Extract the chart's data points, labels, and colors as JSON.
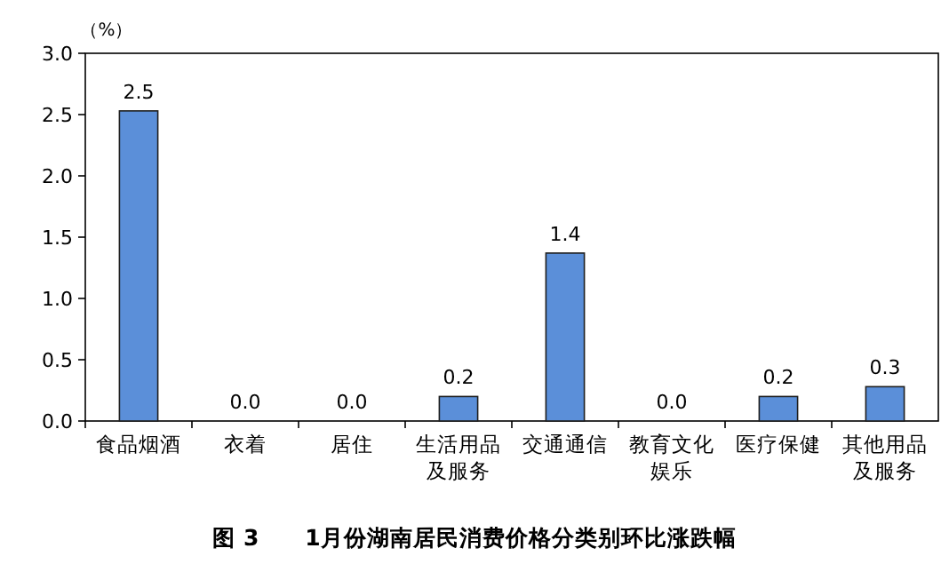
{
  "chart_data": {
    "type": "bar",
    "title": "图 3　　1月份湖南居民消费价格分类别环比涨跌幅",
    "ylabel": "（%）",
    "categories": [
      "食品烟酒",
      "衣着",
      "居住",
      "生活用品及服务",
      "交通通信",
      "教育文化娱乐",
      "医疗保健",
      "其他用品及服务"
    ],
    "values": [
      2.53,
      0,
      0,
      0.2,
      1.37,
      0,
      0.2,
      0.28
    ],
    "value_labels": [
      "2.5",
      "0.0",
      "0.0",
      "0.2",
      "1.4",
      "0.0",
      "0.2",
      "0.3"
    ],
    "color": "#5b8fd9",
    "ylim": [
      0,
      3
    ],
    "yticks": [
      {
        "value": 0,
        "label": "0.0"
      },
      {
        "value": 0.5,
        "label": "0.5"
      },
      {
        "value": 1,
        "label": "1.0"
      },
      {
        "value": 1.5,
        "label": "1.5"
      },
      {
        "value": 2,
        "label": "2.0"
      },
      {
        "value": 2.5,
        "label": "2.5"
      },
      {
        "value": 3,
        "label": "3.0"
      }
    ],
    "grid": false
  }
}
